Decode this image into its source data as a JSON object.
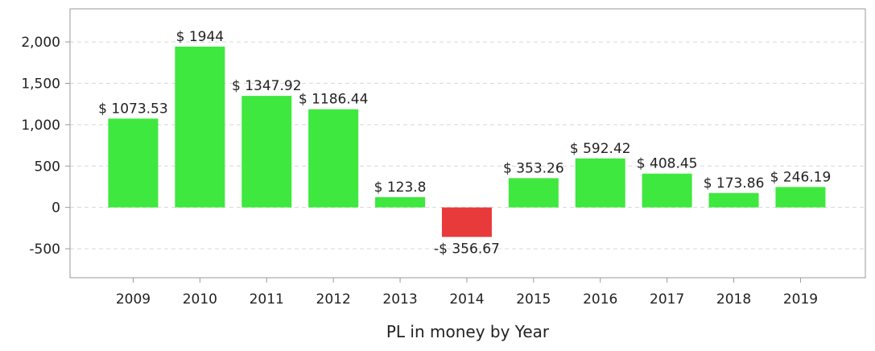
{
  "chart_data": {
    "type": "bar",
    "title": "",
    "xlabel": "PL in money by Year",
    "ylabel": "",
    "ylim": [
      -850,
      2400
    ],
    "yticks": [
      -500,
      0,
      500,
      1000,
      1500,
      2000
    ],
    "ytick_labels": [
      "-500",
      "0",
      "500",
      "1,000",
      "1,500",
      "2,000"
    ],
    "categories": [
      "2009",
      "2010",
      "2011",
      "2012",
      "2013",
      "2014",
      "2015",
      "2016",
      "2017",
      "2018",
      "2019"
    ],
    "values": [
      1073.53,
      1944,
      1347.92,
      1186.44,
      123.8,
      -356.67,
      353.26,
      592.42,
      408.45,
      173.86,
      246.19
    ],
    "data_labels": [
      "$ 1073.53",
      "$ 1944",
      "$ 1347.92",
      "$ 1186.44",
      "$ 123.8",
      "-$ 356.67",
      "$ 353.26",
      "$ 592.42",
      "$ 408.45",
      "$ 173.86",
      "$ 246.19"
    ],
    "grid": true,
    "colors": {
      "positive": "#3ee83e",
      "negative": "#e83a3a",
      "grid": "#d8d8d8",
      "axis": "#999999"
    }
  }
}
